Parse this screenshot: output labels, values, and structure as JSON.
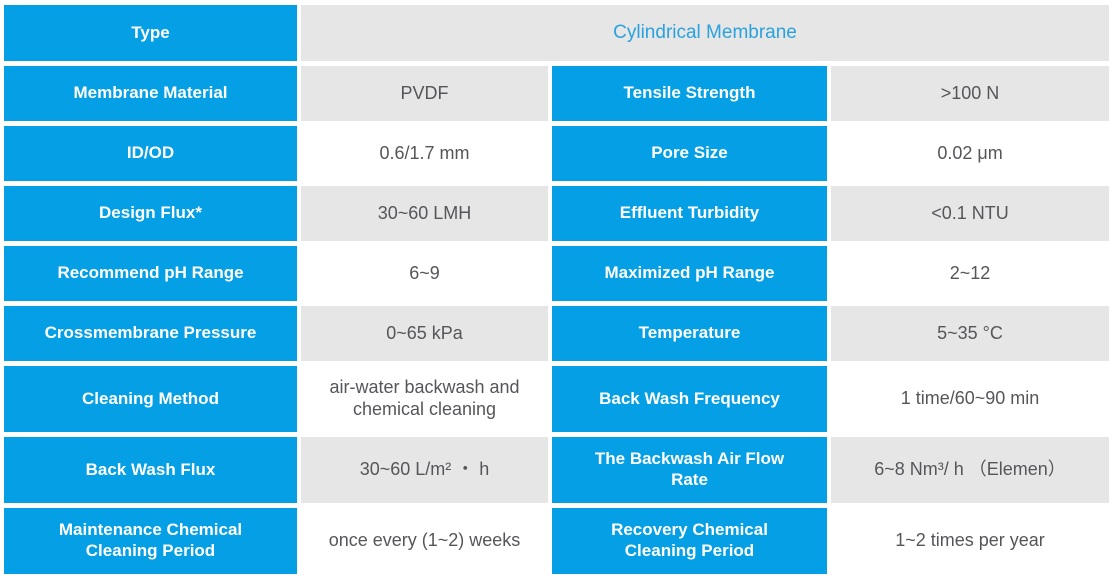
{
  "colors": {
    "cell_blue": "#049fe4",
    "shade_gray": "#e6e6e6",
    "value_text": "#55565a",
    "type_value_blue": "#2aa2dd"
  },
  "table": {
    "type_row": {
      "label": "Type",
      "value": "Cylindrical Membrane"
    },
    "rows": [
      {
        "label_left": "Membrane Material",
        "value_left": "PVDF",
        "label_right": "Tensile Strength",
        "value_right": ">100 N",
        "shaded": true
      },
      {
        "label_left": "ID/OD",
        "value_left": "0.6/1.7 mm",
        "label_right": "Pore Size",
        "value_right": "0.02 μm",
        "shaded": false
      },
      {
        "label_left": "Design Flux*",
        "value_left": "30~60 LMH",
        "label_right": "Effluent Turbidity",
        "value_right": "<0.1 NTU",
        "shaded": true
      },
      {
        "label_left": "Recommend pH Range",
        "value_left": "6~9",
        "label_right": "Maximized pH Range",
        "value_right": "2~12",
        "shaded": false
      },
      {
        "label_left": "Crossmembrane Pressure",
        "value_left": "0~65 kPa",
        "label_right": "Temperature",
        "value_right": "5~35 °C",
        "shaded": true
      },
      {
        "label_left": "Cleaning Method",
        "value_left": "air-water backwash and chemical cleaning",
        "label_right": "Back Wash Frequency",
        "value_right": "1 time/60~90 min",
        "shaded": false
      },
      {
        "label_left": "Back Wash Flux",
        "value_left": "30~60 L/m² ・ h",
        "label_right": "The Backwash Air Flow Rate",
        "value_right": "6~8 Nm³/ h （Elemen）",
        "shaded": true
      },
      {
        "label_left": "Maintenance Chemical Cleaning Period",
        "value_left": "once every (1~2) weeks",
        "label_right": "Recovery Chemical Cleaning Period",
        "value_right": "1~2 times per year",
        "shaded": false
      }
    ]
  }
}
